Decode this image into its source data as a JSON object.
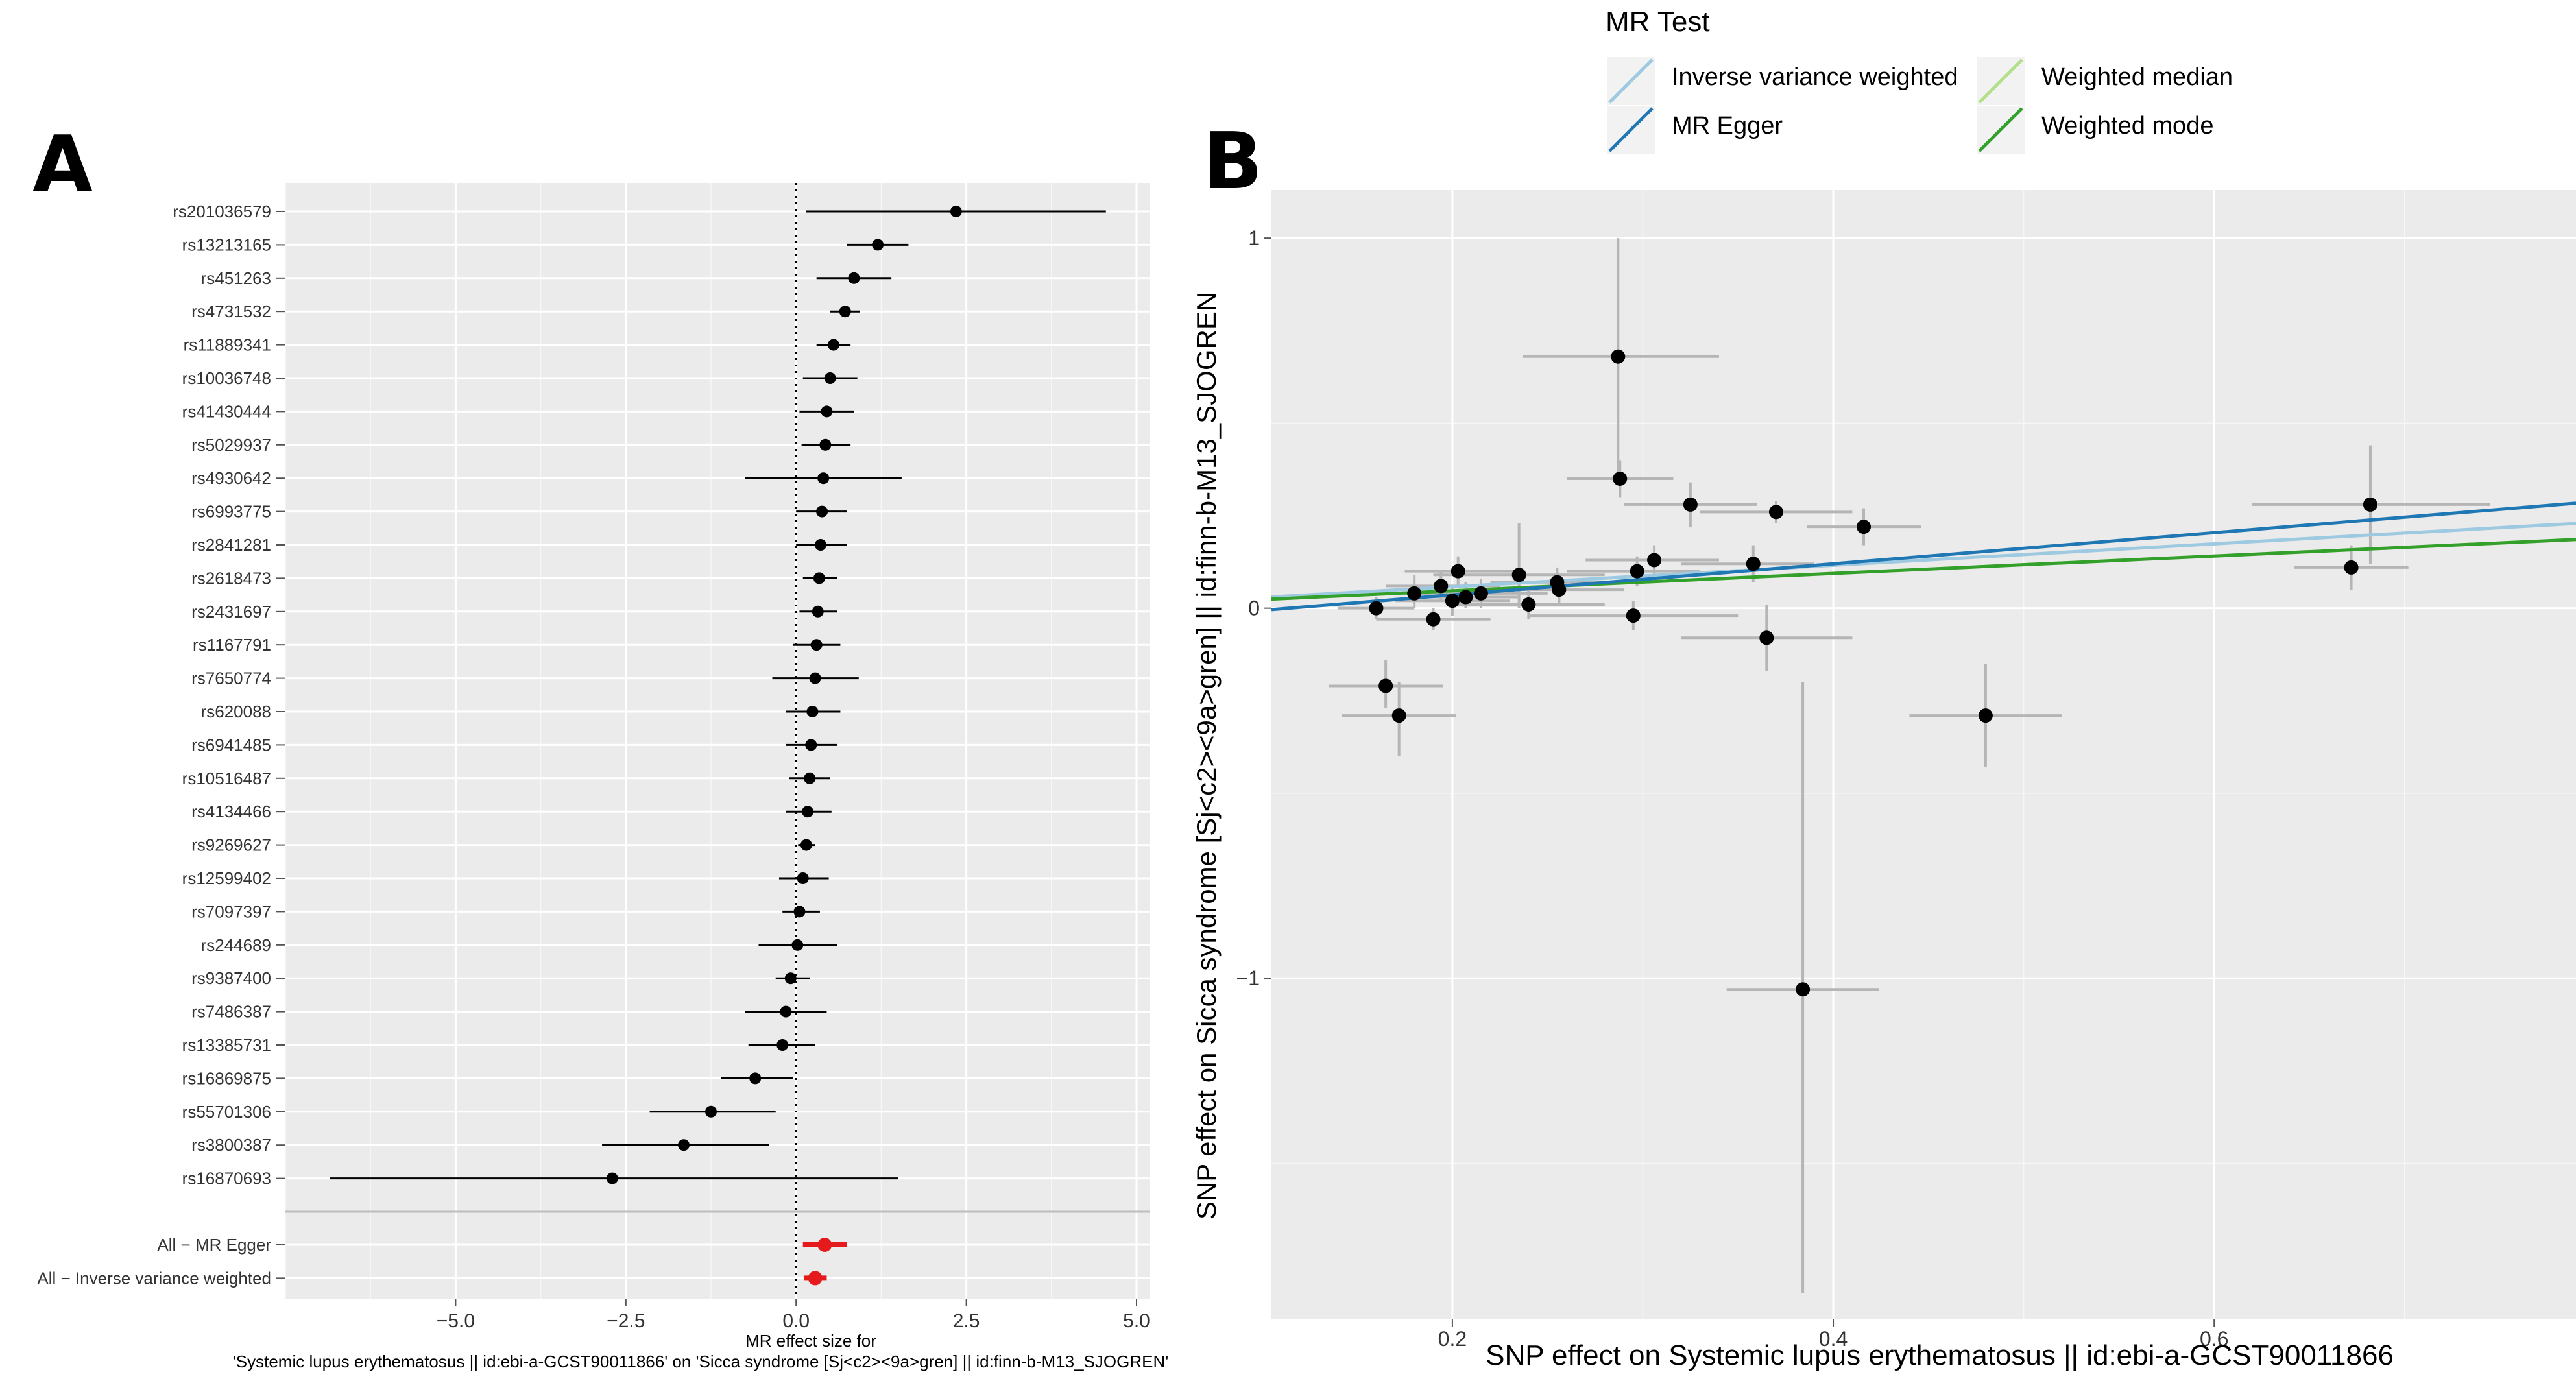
{
  "chart_data": [
    {
      "type": "forest",
      "panel": "A",
      "xlabel": "MR effect size for\n'Systemic lupus erythematosus || id:ebi-a-GCST90011866' on 'Sicca syndrome [Sj<c2><9a>gren] || id:finn-b-M13_SJOGREN'",
      "xlim": [
        -7.5,
        5.2
      ],
      "xticks": [
        -5.0,
        -2.5,
        0.0,
        2.5,
        5.0
      ],
      "xtick_labels": [
        "−5.0",
        "−2.5",
        "0.0",
        "2.5",
        "5.0"
      ],
      "snps": [
        {
          "label": "rs201036579",
          "b": 2.35,
          "lo": 0.15,
          "hi": 4.55
        },
        {
          "label": "rs13213165",
          "b": 1.2,
          "lo": 0.75,
          "hi": 1.65
        },
        {
          "label": "rs451263",
          "b": 0.85,
          "lo": 0.3,
          "hi": 1.4
        },
        {
          "label": "rs4731532",
          "b": 0.72,
          "lo": 0.5,
          "hi": 0.94
        },
        {
          "label": "rs11889341",
          "b": 0.55,
          "lo": 0.3,
          "hi": 0.8
        },
        {
          "label": "rs10036748",
          "b": 0.5,
          "lo": 0.1,
          "hi": 0.9
        },
        {
          "label": "rs41430444",
          "b": 0.45,
          "lo": 0.05,
          "hi": 0.85
        },
        {
          "label": "rs5029937",
          "b": 0.43,
          "lo": 0.08,
          "hi": 0.8
        },
        {
          "label": "rs4930642",
          "b": 0.4,
          "lo": -0.75,
          "hi": 1.55
        },
        {
          "label": "rs6993775",
          "b": 0.38,
          "lo": 0.0,
          "hi": 0.75
        },
        {
          "label": "rs2841281",
          "b": 0.36,
          "lo": 0.0,
          "hi": 0.75
        },
        {
          "label": "rs2618473",
          "b": 0.34,
          "lo": 0.1,
          "hi": 0.6
        },
        {
          "label": "rs2431697",
          "b": 0.32,
          "lo": 0.05,
          "hi": 0.6
        },
        {
          "label": "rs1167791",
          "b": 0.3,
          "lo": -0.05,
          "hi": 0.65
        },
        {
          "label": "rs7650774",
          "b": 0.28,
          "lo": -0.35,
          "hi": 0.92
        },
        {
          "label": "rs620088",
          "b": 0.24,
          "lo": -0.15,
          "hi": 0.65
        },
        {
          "label": "rs6941485",
          "b": 0.22,
          "lo": -0.15,
          "hi": 0.6
        },
        {
          "label": "rs10516487",
          "b": 0.2,
          "lo": -0.1,
          "hi": 0.5
        },
        {
          "label": "rs4134466",
          "b": 0.17,
          "lo": -0.15,
          "hi": 0.52
        },
        {
          "label": "rs9269627",
          "b": 0.15,
          "lo": 0.03,
          "hi": 0.28
        },
        {
          "label": "rs12599402",
          "b": 0.1,
          "lo": -0.25,
          "hi": 0.48
        },
        {
          "label": "rs7097397",
          "b": 0.05,
          "lo": -0.2,
          "hi": 0.35
        },
        {
          "label": "rs244689",
          "b": 0.02,
          "lo": -0.55,
          "hi": 0.6
        },
        {
          "label": "rs9387400",
          "b": -0.08,
          "lo": -0.3,
          "hi": 0.2
        },
        {
          "label": "rs7486387",
          "b": -0.15,
          "lo": -0.75,
          "hi": 0.45
        },
        {
          "label": "rs13385731",
          "b": -0.2,
          "lo": -0.7,
          "hi": 0.28
        },
        {
          "label": "rs16869875",
          "b": -0.6,
          "lo": -1.1,
          "hi": -0.05
        },
        {
          "label": "rs55701306",
          "b": -1.25,
          "lo": -2.15,
          "hi": -0.3
        },
        {
          "label": "rs3800387",
          "b": -1.65,
          "lo": -2.85,
          "hi": -0.4
        },
        {
          "label": "rs16870693",
          "b": -2.7,
          "lo": -6.85,
          "hi": 1.5
        }
      ],
      "summary": [
        {
          "label": "All − MR Egger",
          "b": 0.42,
          "lo": 0.1,
          "hi": 0.75
        },
        {
          "label": "All − Inverse variance weighted",
          "b": 0.28,
          "lo": 0.12,
          "hi": 0.45
        }
      ],
      "summary_color": "#e41a1c"
    },
    {
      "type": "scatter",
      "panel": "B",
      "xlabel": "SNP effect on Systemic lupus erythematosus || id:ebi-a-GCST90011866",
      "ylabel": "SNP effect on Sicca syndrome [Sj<c2><9a>gren] || id:finn-b-M13_SJOGREN",
      "xlim": [
        0.105,
        0.79
      ],
      "ylim": [
        -1.92,
        1.13
      ],
      "xticks": [
        0.2,
        0.4,
        0.6
      ],
      "yticks": [
        -1,
        0,
        1
      ],
      "ytick_labels": [
        "−1",
        "0",
        "1"
      ],
      "points": [
        {
          "x": 0.16,
          "y": 0.0,
          "xlo": 0.14,
          "xhi": 0.18,
          "ylo": -0.03,
          "yhi": 0.03
        },
        {
          "x": 0.165,
          "y": -0.21,
          "xlo": 0.135,
          "xhi": 0.195,
          "ylo": -0.27,
          "yhi": -0.14
        },
        {
          "x": 0.172,
          "y": -0.29,
          "xlo": 0.142,
          "xhi": 0.202,
          "ylo": -0.4,
          "yhi": -0.2
        },
        {
          "x": 0.18,
          "y": 0.04,
          "xlo": 0.15,
          "xhi": 0.21,
          "ylo": 0.0,
          "yhi": 0.09
        },
        {
          "x": 0.19,
          "y": -0.03,
          "xlo": 0.16,
          "xhi": 0.22,
          "ylo": -0.06,
          "yhi": 0.0
        },
        {
          "x": 0.194,
          "y": 0.06,
          "xlo": 0.165,
          "xhi": 0.225,
          "ylo": 0.02,
          "yhi": 0.1
        },
        {
          "x": 0.2,
          "y": 0.02,
          "xlo": 0.17,
          "xhi": 0.23,
          "ylo": -0.02,
          "yhi": 0.06
        },
        {
          "x": 0.203,
          "y": 0.1,
          "xlo": 0.175,
          "xhi": 0.235,
          "ylo": 0.06,
          "yhi": 0.14
        },
        {
          "x": 0.207,
          "y": 0.03,
          "xlo": 0.18,
          "xhi": 0.235,
          "ylo": 0.0,
          "yhi": 0.07
        },
        {
          "x": 0.215,
          "y": 0.04,
          "xlo": 0.18,
          "xhi": 0.25,
          "ylo": 0.0,
          "yhi": 0.08
        },
        {
          "x": 0.235,
          "y": 0.09,
          "xlo": 0.19,
          "xhi": 0.28,
          "ylo": 0.0,
          "yhi": 0.23
        },
        {
          "x": 0.24,
          "y": 0.01,
          "xlo": 0.2,
          "xhi": 0.28,
          "ylo": -0.03,
          "yhi": 0.05
        },
        {
          "x": 0.255,
          "y": 0.07,
          "xlo": 0.22,
          "xhi": 0.29,
          "ylo": 0.03,
          "yhi": 0.11
        },
        {
          "x": 0.256,
          "y": 0.05,
          "xlo": 0.22,
          "xhi": 0.29,
          "ylo": 0.01,
          "yhi": 0.09
        },
        {
          "x": 0.287,
          "y": 0.68,
          "xlo": 0.237,
          "xhi": 0.34,
          "ylo": 0.36,
          "yhi": 1.0
        },
        {
          "x": 0.288,
          "y": 0.35,
          "xlo": 0.26,
          "xhi": 0.316,
          "ylo": 0.3,
          "yhi": 0.4
        },
        {
          "x": 0.295,
          "y": -0.02,
          "xlo": 0.24,
          "xhi": 0.35,
          "ylo": -0.06,
          "yhi": 0.02
        },
        {
          "x": 0.297,
          "y": 0.1,
          "xlo": 0.26,
          "xhi": 0.33,
          "ylo": 0.06,
          "yhi": 0.14
        },
        {
          "x": 0.306,
          "y": 0.13,
          "xlo": 0.27,
          "xhi": 0.34,
          "ylo": 0.09,
          "yhi": 0.17
        },
        {
          "x": 0.325,
          "y": 0.28,
          "xlo": 0.29,
          "xhi": 0.36,
          "ylo": 0.22,
          "yhi": 0.34
        },
        {
          "x": 0.358,
          "y": 0.12,
          "xlo": 0.32,
          "xhi": 0.39,
          "ylo": 0.07,
          "yhi": 0.17
        },
        {
          "x": 0.365,
          "y": -0.08,
          "xlo": 0.32,
          "xhi": 0.41,
          "ylo": -0.17,
          "yhi": 0.01
        },
        {
          "x": 0.37,
          "y": 0.26,
          "xlo": 0.33,
          "xhi": 0.41,
          "ylo": 0.23,
          "yhi": 0.29
        },
        {
          "x": 0.384,
          "y": -1.03,
          "xlo": 0.344,
          "xhi": 0.424,
          "ylo": -1.85,
          "yhi": -0.2
        },
        {
          "x": 0.416,
          "y": 0.22,
          "xlo": 0.386,
          "xhi": 0.446,
          "ylo": 0.17,
          "yhi": 0.27
        },
        {
          "x": 0.48,
          "y": -0.29,
          "xlo": 0.44,
          "xhi": 0.52,
          "ylo": -0.43,
          "yhi": -0.15
        },
        {
          "x": 0.672,
          "y": 0.11,
          "xlo": 0.642,
          "xhi": 0.702,
          "ylo": 0.05,
          "yhi": 0.17
        },
        {
          "x": 0.682,
          "y": 0.28,
          "xlo": 0.62,
          "xhi": 0.745,
          "ylo": 0.12,
          "yhi": 0.44
        }
      ],
      "lines": [
        {
          "name": "Inverse variance weighted",
          "color": "#9ecae1",
          "intercept": 0.0,
          "slope": 0.29
        },
        {
          "name": "MR Egger",
          "color": "#1f78b4",
          "intercept": -0.048,
          "slope": 0.42
        },
        {
          "name": "Weighted median",
          "color": "#b2df8a",
          "intercept": 0.0,
          "slope": 0.235
        },
        {
          "name": "Weighted mode",
          "color": "#33a02c",
          "intercept": 0.0,
          "slope": 0.235
        }
      ]
    }
  ],
  "legend": {
    "title": "MR Test",
    "entries": [
      {
        "name": "Inverse variance weighted",
        "color": "#9ecae1"
      },
      {
        "name": "Weighted median",
        "color": "#b2df8a"
      },
      {
        "name": "MR Egger",
        "color": "#1f78b4"
      },
      {
        "name": "Weighted mode",
        "color": "#33a02c"
      }
    ]
  },
  "panel_labels": [
    "A",
    "B"
  ]
}
